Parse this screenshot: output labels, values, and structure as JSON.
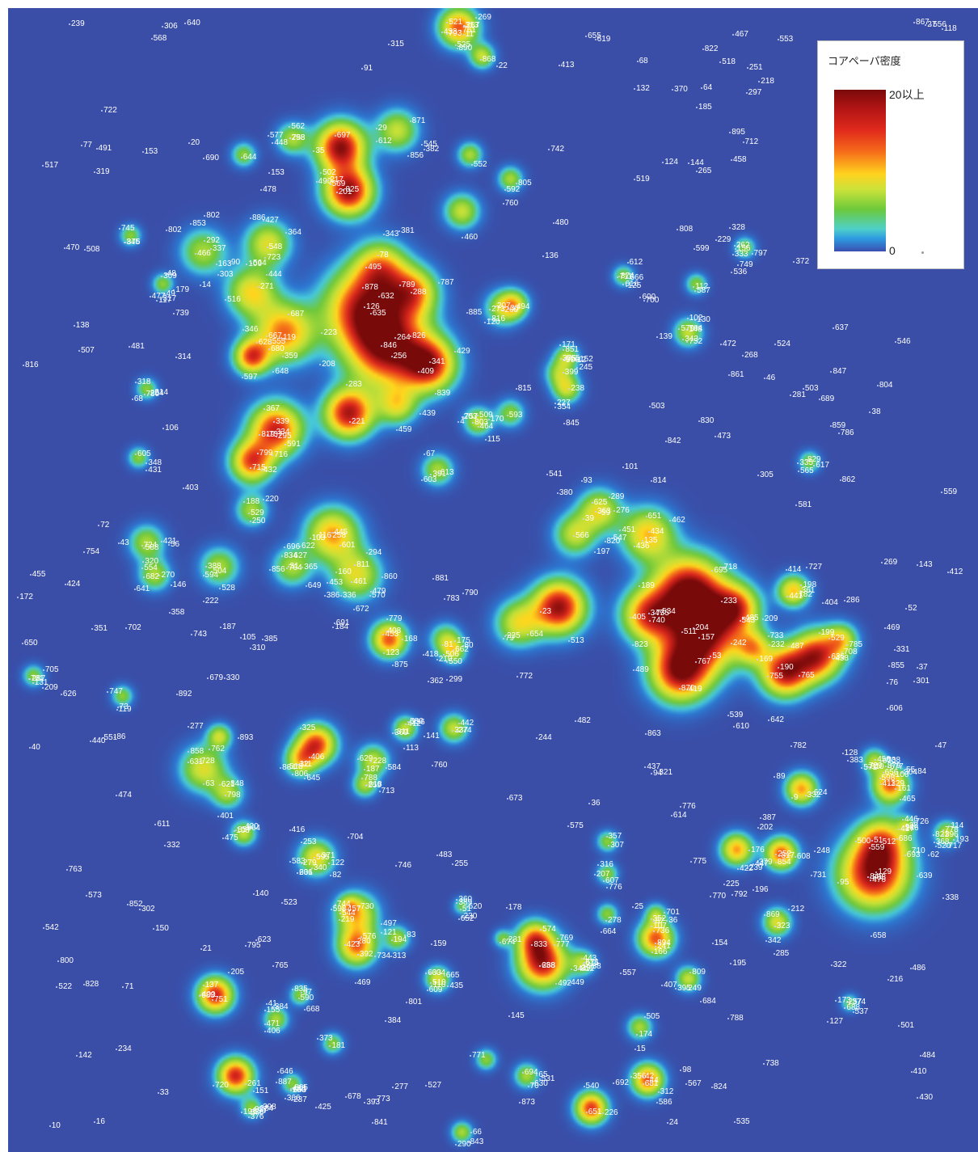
{
  "legend": {
    "title": "コアペーパ密度",
    "max_label": "20以上",
    "min_label": "0"
  },
  "colors": {
    "background": "#3a4ea8",
    "label": "#ffffff",
    "high_density": "#7a0a0a"
  },
  "labels": [
    "325",
    "94",
    "171",
    "598",
    "174",
    "322",
    "778",
    "53",
    "329",
    "79",
    "255",
    "304",
    "777",
    "312",
    "376",
    "361",
    "570",
    "123",
    "369",
    "36",
    "344",
    "31",
    "222",
    "655",
    "101",
    "139",
    "412",
    "316",
    "151",
    "622",
    "317",
    "161",
    "212",
    "449",
    "525",
    "321",
    "83",
    "776",
    "625",
    "461",
    "389",
    "46",
    "239",
    "521",
    "256",
    "776",
    "170",
    "271",
    "516",
    "652",
    "73",
    "673",
    "153",
    "517",
    "520",
    "354",
    "411",
    "606",
    "57",
    "785",
    "441",
    "488",
    "338",
    "371",
    "482",
    "364",
    "313",
    "52",
    "690",
    "148",
    "309",
    "21",
    "536",
    "723",
    "332",
    "808",
    "627",
    "742",
    "141",
    "35",
    "443",
    "175",
    "67",
    "176",
    "683",
    "752",
    "856",
    "59",
    "755",
    "202",
    "47",
    "302",
    "583",
    "825",
    "544",
    "333",
    "196",
    "593",
    "68",
    "478",
    "356",
    "588",
    "648",
    "817",
    "814",
    "839",
    "612",
    "529",
    "235",
    "90",
    "701",
    "460",
    "678",
    "564",
    "95",
    "490",
    "859",
    "495",
    "311",
    "143",
    "100",
    "430",
    "42",
    "264",
    "341",
    "401",
    "688",
    "120",
    "858",
    "861",
    "747",
    "677",
    "412",
    "413",
    "306",
    "485",
    "357",
    "214",
    "157",
    "276",
    "801",
    "518",
    "818",
    "277",
    "538",
    "780",
    "580",
    "150",
    "595",
    "198",
    "117",
    "248",
    "152",
    "221",
    "227",
    "554",
    "729",
    "829",
    "864",
    "816",
    "80",
    "279",
    "484",
    "537",
    "128",
    "168",
    "599",
    "284",
    "733",
    "760",
    "547",
    "826",
    "140",
    "138",
    "651",
    "810",
    "797",
    "86",
    "792",
    "436",
    "431",
    "851",
    "873",
    "878",
    "303",
    "406",
    "373",
    "510",
    "360",
    "130",
    "145",
    "788",
    "433",
    "833",
    "765",
    "352",
    "865",
    "856",
    "716",
    "854",
    "44",
    "335",
    "36",
    "146",
    "363",
    "645",
    "43",
    "569",
    "265",
    "434",
    "835",
    "286",
    "268",
    "422",
    "868",
    "879",
    "751",
    "314",
    "259",
    "217",
    "603",
    "277",
    "397",
    "193",
    "310",
    "846",
    "679",
    "576",
    "802",
    "849",
    "804",
    "343",
    "874",
    "483",
    "131",
    "380",
    "359",
    "298",
    "15",
    "315",
    "715",
    "636",
    "194",
    "724",
    "205",
    "871",
    "860",
    "301",
    "770",
    "424",
    "630",
    "125",
    "98",
    "116",
    "771",
    "381",
    "435",
    "620",
    "337",
    "423",
    "323",
    "230",
    "108",
    "132",
    "651",
    "579",
    "470",
    "287",
    "650",
    "727",
    "289",
    "395",
    "513",
    "337",
    "711",
    "629",
    "809",
    "362",
    "628",
    "767",
    "267",
    "318",
    "382",
    "757",
    "799",
    "600",
    "444",
    "179",
    "438",
    "740",
    "257",
    "351",
    "523",
    "754",
    "250",
    "546",
    "501",
    "408",
    "207",
    "591",
    "416",
    "626",
    "442",
    "708",
    "37",
    "23",
    "305",
    "737",
    "185",
    "238",
    "89",
    "346",
    "466",
    "4",
    "201",
    "693",
    "548",
    "223",
    "122",
    "642",
    "386",
    "472",
    "29",
    "587",
    "396",
    "207",
    "794",
    "172",
    "12",
    "220",
    "142",
    "155",
    "403",
    "366",
    "718",
    "710",
    "700",
    "802",
    "102",
    "111",
    "758",
    "334",
    "372",
    "251",
    "568",
    "40",
    "644",
    "439",
    "347",
    "571",
    "819",
    "816",
    "252",
    "800",
    "795",
    "32",
    "469",
    "581",
    "787",
    "16",
    "56",
    "62",
    "208",
    "702",
    "559",
    "474",
    "681",
    "875",
    "555",
    "328",
    "475",
    "126",
    "616",
    "64",
    "77",
    "842",
    "613",
    "407",
    "608",
    "584",
    "617",
    "505",
    "473",
    "634",
    "539",
    "189",
    "462",
    "268",
    "154",
    "160",
    "744",
    "730",
    "507",
    "830",
    "885",
    "654",
    "696",
    "712",
    "550",
    "137",
    "705",
    "614",
    "529",
    "385",
    "541",
    "477",
    "387",
    "761",
    "453",
    "631",
    "735",
    "815",
    "841",
    "762",
    "110",
    "339",
    "686",
    "190",
    "545",
    "283",
    "450",
    "313",
    "847",
    "332",
    "823",
    "119",
    "605",
    "632",
    "82",
    "811",
    "798",
    "388",
    "299",
    "446",
    "295",
    "421",
    "367",
    "467",
    "559",
    "567",
    "481",
    "30",
    "820",
    "114",
    "437",
    "649",
    "824",
    "888",
    "297",
    "892",
    "269",
    "476",
    "14",
    "228",
    "522",
    "538",
    "471",
    "20",
    "246",
    "694",
    "269",
    "793",
    "805",
    "419",
    "782",
    "728",
    "65",
    "749",
    "895",
    "9",
    "876",
    "425",
    "611",
    "646",
    "270",
    "420",
    "597",
    "129",
    "619",
    "331",
    "91",
    "803",
    "834",
    "565",
    "822",
    "448",
    "358",
    "552",
    "893",
    "97",
    "812",
    "249",
    "624",
    "182",
    "210",
    "229",
    "63",
    "575",
    "610",
    "112",
    "574",
    "107",
    "658",
    "253",
    "821",
    "181",
    "848",
    "278",
    "39",
    "285",
    "51",
    "509",
    "641",
    "41",
    "553",
    "566",
    "453",
    "225",
    "22",
    "592",
    "697",
    "188",
    "894",
    "790",
    "342",
    "440",
    "601",
    "274",
    "330",
    "639",
    "687",
    "199",
    "665",
    "432",
    "124",
    "184",
    "245",
    "722",
    "739",
    "857",
    "70",
    "384",
    "852",
    "867",
    "656",
    "383",
    "400",
    "704",
    "237",
    "743",
    "609",
    "226",
    "746",
    "662",
    "87",
    "464",
    "764",
    "781",
    "672",
    "884",
    "789",
    "511",
    "203",
    "491",
    "159",
    "345",
    "828",
    "713",
    "195",
    "384",
    "81",
    "607",
    "631",
    "109",
    "166",
    "457",
    "204",
    "565",
    "368",
    "855",
    "551",
    "49",
    "717",
    "775",
    "261",
    "504",
    "692",
    "535",
    "239",
    "231",
    "392",
    "779",
    "11",
    "417",
    "374",
    "640",
    "590",
    "136",
    "445",
    "38",
    "479",
    "71",
    "187",
    "508",
    "726",
    "290",
    "398",
    "197",
    "763",
    "706",
    "738",
    "788",
    "527",
    "260",
    "187",
    "156",
    "280",
    "786",
    "343",
    "682",
    "209",
    "512",
    "206",
    "447",
    "10",
    "288",
    "653",
    "320",
    "586",
    "209",
    "863",
    "543",
    "674",
    "684",
    "458",
    "695",
    "540",
    "393",
    "404",
    "336",
    "262",
    "292",
    "577",
    "845",
    "556",
    "258",
    "153",
    "319",
    "118",
    "503",
    "113",
    "502",
    "55",
    "668",
    "178",
    "163",
    "294",
    "379",
    "615",
    "773",
    "876",
    "506",
    "489",
    "869",
    "887",
    "881",
    "365",
    "769",
    "103",
    "623",
    "169",
    "666",
    "180",
    "531",
    "528",
    "219",
    "486",
    "24",
    "806",
    "689",
    "890",
    "862",
    "827",
    "497",
    "427",
    "233",
    "115",
    "664",
    "487",
    "254",
    "409",
    "870",
    "886",
    "843",
    "127",
    "48",
    "418",
    "598",
    "542",
    "405",
    "760",
    "236",
    "273",
    "370",
    "135",
    "612",
    "451",
    "637",
    "670",
    "242",
    "518",
    "414",
    "459",
    "216",
    "853",
    "519",
    "667",
    "399",
    "144",
    "105",
    "635",
    "594",
    "340",
    "84",
    "765",
    "28",
    "783",
    "736",
    "348",
    "557",
    "720",
    "455",
    "72",
    "119",
    "503",
    "573",
    "218",
    "92",
    "106",
    "480",
    "534",
    "406",
    "191",
    "307",
    "375",
    "234",
    "562",
    "429",
    "680",
    "27",
    "121",
    "66",
    "68",
    "492",
    "232",
    "410",
    "469",
    "638",
    "51",
    "25",
    "33",
    "671",
    "241",
    "731",
    "524",
    "772",
    "173",
    "621",
    "500",
    "494",
    "281",
    "745",
    "734",
    "465",
    "244",
    "633",
    "76",
    "604",
    "78",
    "691",
    "93",
    "391"
  ]
}
